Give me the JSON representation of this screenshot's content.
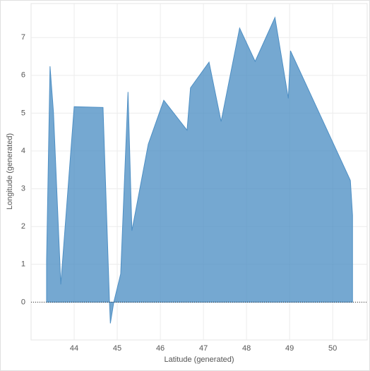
{
  "chart_data": {
    "type": "area",
    "x_label": "Latitude (generated)",
    "y_label": "Longitude (generated)",
    "x": [
      43.36,
      43.36,
      43.44,
      43.52,
      43.69,
      44.0,
      44.67,
      44.82,
      44.84,
      44.92,
      45.08,
      45.25,
      45.34,
      45.72,
      46.08,
      46.62,
      46.7,
      47.13,
      47.41,
      47.84,
      48.2,
      48.66,
      48.97,
      49.02,
      50.41,
      50.46,
      50.46
    ],
    "values": [
      0,
      1.1,
      6.24,
      5.02,
      0.47,
      5.17,
      5.15,
      0,
      -0.56,
      0,
      0.75,
      5.56,
      1.89,
      4.18,
      5.34,
      4.55,
      5.67,
      6.35,
      4.78,
      7.25,
      6.37,
      7.53,
      5.39,
      6.65,
      3.22,
      2.3,
      0
    ],
    "color": "#4e8fc4",
    "xlim": [
      43.0,
      50.8
    ],
    "xticks": [
      44,
      45,
      46,
      47,
      48,
      49,
      50
    ],
    "ylim": [
      -1.0,
      7.9
    ],
    "yticks": [
      0,
      1,
      2,
      3,
      4,
      5,
      6,
      7
    ],
    "grid": true
  }
}
